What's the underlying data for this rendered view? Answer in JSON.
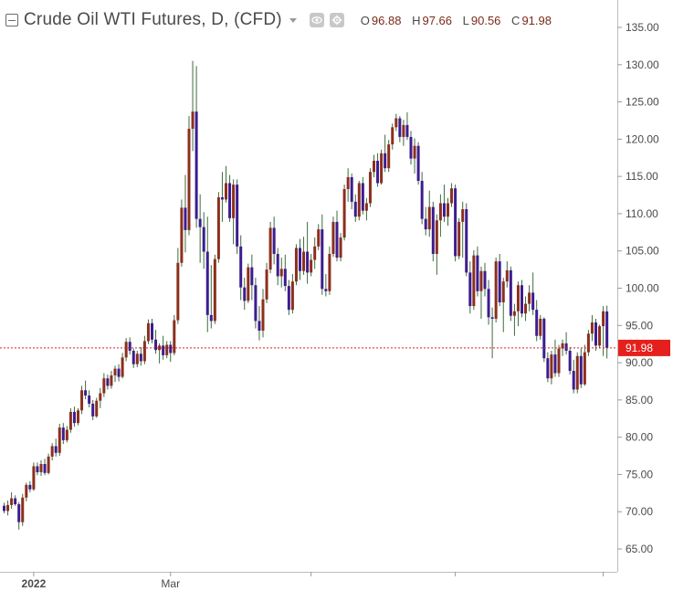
{
  "header": {
    "title": "Crude Oil WTI Futures, D, (CFD)",
    "ohlc": [
      {
        "label": "O",
        "value": "96.88"
      },
      {
        "label": "H",
        "value": "97.66"
      },
      {
        "label": "L",
        "value": "90.56"
      },
      {
        "label": "C",
        "value": "91.98"
      }
    ],
    "icons": [
      "collapse-icon",
      "chevron-down-icon",
      "eye-icon",
      "gear-icon"
    ]
  },
  "colors": {
    "up_body": "#8b2f1d",
    "down_body": "#3c1d8f",
    "wick": "#3e6b3e",
    "last_price_line": "#d9251c",
    "last_price_label_bg": "#e5201c",
    "axis_text": "#4a4a4a"
  },
  "chart_data": {
    "type": "candlestick",
    "title": "Crude Oil WTI Futures, D, (CFD)",
    "y_ticks": [
      65,
      70,
      75,
      80,
      85,
      90,
      95,
      100,
      105,
      110,
      115,
      120,
      125,
      130,
      135
    ],
    "y_tick_labels": [
      "65.00",
      "70.00",
      "75.00",
      "80.00",
      "85.00",
      "90.00",
      "95.00",
      "100.00",
      "105.00",
      "110.00",
      "115.00",
      "120.00",
      "125.00",
      "130.00",
      "135.00"
    ],
    "ylim": [
      62,
      137
    ],
    "x_labels": [
      {
        "text": "2022",
        "index": 8,
        "bold": true
      },
      {
        "text": "Mar",
        "index": 45,
        "bold": false
      }
    ],
    "x_extra_ticks": [
      83,
      122,
      162
    ],
    "last_price": 91.98,
    "last_price_label": "91.98",
    "candles": [
      [
        70.8,
        71.2,
        69.8,
        70.1
      ],
      [
        70.1,
        71.5,
        69.5,
        70.9
      ],
      [
        70.9,
        72.6,
        70.4,
        71.8
      ],
      [
        71.8,
        72.2,
        70.8,
        71.0
      ],
      [
        71.0,
        71.3,
        67.6,
        68.6
      ],
      [
        68.6,
        72.4,
        68.1,
        71.9
      ],
      [
        71.9,
        73.9,
        71.4,
        73.6
      ],
      [
        73.6,
        74.1,
        72.6,
        73.0
      ],
      [
        73.0,
        76.6,
        72.8,
        76.1
      ],
      [
        76.1,
        76.6,
        74.9,
        75.3
      ],
      [
        75.3,
        76.9,
        74.8,
        76.4
      ],
      [
        76.4,
        77.1,
        74.9,
        75.2
      ],
      [
        75.2,
        77.8,
        75.0,
        77.4
      ],
      [
        77.4,
        79.2,
        76.9,
        78.8
      ],
      [
        78.8,
        79.8,
        77.4,
        77.9
      ],
      [
        77.9,
        81.8,
        77.5,
        81.3
      ],
      [
        81.3,
        81.9,
        79.1,
        79.6
      ],
      [
        79.6,
        81.5,
        79.3,
        81.0
      ],
      [
        81.0,
        83.9,
        80.6,
        83.4
      ],
      [
        83.4,
        84.1,
        81.4,
        81.9
      ],
      [
        81.9,
        83.9,
        81.6,
        83.6
      ],
      [
        83.6,
        86.9,
        83.1,
        86.3
      ],
      [
        86.3,
        87.6,
        85.1,
        85.6
      ],
      [
        85.6,
        86.3,
        84.0,
        84.5
      ],
      [
        84.5,
        85.0,
        82.3,
        82.8
      ],
      [
        82.8,
        85.3,
        82.6,
        84.9
      ],
      [
        84.9,
        86.6,
        83.9,
        85.9
      ],
      [
        85.9,
        88.6,
        85.4,
        87.9
      ],
      [
        87.9,
        88.4,
        86.4,
        86.9
      ],
      [
        86.9,
        88.9,
        86.5,
        88.3
      ],
      [
        88.3,
        89.6,
        87.4,
        89.2
      ],
      [
        89.2,
        89.8,
        87.5,
        88.1
      ],
      [
        88.1,
        91.3,
        87.9,
        90.7
      ],
      [
        90.7,
        93.3,
        90.2,
        92.8
      ],
      [
        92.8,
        93.4,
        91.1,
        91.6
      ],
      [
        91.6,
        91.9,
        89.3,
        89.8
      ],
      [
        89.8,
        91.6,
        89.4,
        91.2
      ],
      [
        91.2,
        92.1,
        89.6,
        90.2
      ],
      [
        90.2,
        93.6,
        89.8,
        92.9
      ],
      [
        92.9,
        95.8,
        92.5,
        95.3
      ],
      [
        95.3,
        95.9,
        92.6,
        93.1
      ],
      [
        93.1,
        94.4,
        91.2,
        91.7
      ],
      [
        91.7,
        92.6,
        89.9,
        92.3
      ],
      [
        92.3,
        93.6,
        90.4,
        91.0
      ],
      [
        91.0,
        92.9,
        90.6,
        92.4
      ],
      [
        92.4,
        92.9,
        90.1,
        91.3
      ],
      [
        91.3,
        96.4,
        91.0,
        95.7
      ],
      [
        95.7,
        105.4,
        95.2,
        103.4
      ],
      [
        103.4,
        111.9,
        102.9,
        110.8
      ],
      [
        110.8,
        115.2,
        104.8,
        107.8
      ],
      [
        107.8,
        123.1,
        107.1,
        121.4
      ],
      [
        121.4,
        130.5,
        118.4,
        123.7
      ],
      [
        123.7,
        129.8,
        108.1,
        109.3
      ],
      [
        109.3,
        112.6,
        103.4,
        108.2
      ],
      [
        108.2,
        110.2,
        102.6,
        104.9
      ],
      [
        104.9,
        109.6,
        94.1,
        96.4
      ],
      [
        96.4,
        103.1,
        94.6,
        95.6
      ],
      [
        95.6,
        104.5,
        95.2,
        103.9
      ],
      [
        103.9,
        112.9,
        103.4,
        112.2
      ],
      [
        112.2,
        115.6,
        108.9,
        111.9
      ],
      [
        111.9,
        116.4,
        111.5,
        114.1
      ],
      [
        114.1,
        115.2,
        108.9,
        109.4
      ],
      [
        109.4,
        114.6,
        105.9,
        113.9
      ],
      [
        113.9,
        114.6,
        104.6,
        105.6
      ],
      [
        105.6,
        107.1,
        98.4,
        100.1
      ],
      [
        100.1,
        101.4,
        97.1,
        98.3
      ],
      [
        98.3,
        103.3,
        98.0,
        102.8
      ],
      [
        102.8,
        104.5,
        98.4,
        100.4
      ],
      [
        100.4,
        101.4,
        94.6,
        95.6
      ],
      [
        95.6,
        97.6,
        93.0,
        94.3
      ],
      [
        94.3,
        99.9,
        93.4,
        98.5
      ],
      [
        98.5,
        103.4,
        98.0,
        102.5
      ],
      [
        102.5,
        108.9,
        102.0,
        108.1
      ],
      [
        108.1,
        109.6,
        103.2,
        104.6
      ],
      [
        104.6,
        105.4,
        100.4,
        101.6
      ],
      [
        101.6,
        104.1,
        100.1,
        102.6
      ],
      [
        102.6,
        104.5,
        99.6,
        100.3
      ],
      [
        100.3,
        101.1,
        96.4,
        97.1
      ],
      [
        97.1,
        101.9,
        96.6,
        100.9
      ],
      [
        100.9,
        105.9,
        100.4,
        105.4
      ],
      [
        105.4,
        106.6,
        101.1,
        102.3
      ],
      [
        102.3,
        106.9,
        101.8,
        104.9
      ],
      [
        104.9,
        108.9,
        100.6,
        102.1
      ],
      [
        102.1,
        104.6,
        101.6,
        103.8
      ],
      [
        103.8,
        106.8,
        102.6,
        105.6
      ],
      [
        105.6,
        108.6,
        105.1,
        107.9
      ],
      [
        107.9,
        109.9,
        99.1,
        99.9
      ],
      [
        99.9,
        101.9,
        98.9,
        99.6
      ],
      [
        99.6,
        105.6,
        99.1,
        104.6
      ],
      [
        104.6,
        109.6,
        104.2,
        108.9
      ],
      [
        108.9,
        110.4,
        103.6,
        104.1
      ],
      [
        104.1,
        107.4,
        103.6,
        106.8
      ],
      [
        106.8,
        113.9,
        106.4,
        113.3
      ],
      [
        113.3,
        116.1,
        111.6,
        114.9
      ],
      [
        114.9,
        115.4,
        110.6,
        111.6
      ],
      [
        111.6,
        112.6,
        108.9,
        109.6
      ],
      [
        109.6,
        114.4,
        109.1,
        114.1
      ],
      [
        114.1,
        114.9,
        109.9,
        110.4
      ],
      [
        110.4,
        112.1,
        109.1,
        111.4
      ],
      [
        111.4,
        116.1,
        110.9,
        115.6
      ],
      [
        115.6,
        117.9,
        114.9,
        117.1
      ],
      [
        117.1,
        118.1,
        113.6,
        114.1
      ],
      [
        114.1,
        118.6,
        113.9,
        118.1
      ],
      [
        118.1,
        120.6,
        115.6,
        116.1
      ],
      [
        116.1,
        119.9,
        115.6,
        119.3
      ],
      [
        119.3,
        122.1,
        118.6,
        121.6
      ],
      [
        121.6,
        123.4,
        121.1,
        122.8
      ],
      [
        122.8,
        123.1,
        119.6,
        120.3
      ],
      [
        120.3,
        122.6,
        119.1,
        121.9
      ],
      [
        121.9,
        123.6,
        119.9,
        120.3
      ],
      [
        120.3,
        121.1,
        116.6,
        117.4
      ],
      [
        117.4,
        120.1,
        115.4,
        119.1
      ],
      [
        119.1,
        119.6,
        113.9,
        114.4
      ],
      [
        114.4,
        115.6,
        108.6,
        109.3
      ],
      [
        109.3,
        110.9,
        107.1,
        107.9
      ],
      [
        107.9,
        113.1,
        106.9,
        110.9
      ],
      [
        110.9,
        111.6,
        103.6,
        104.6
      ],
      [
        104.6,
        109.9,
        101.8,
        109.1
      ],
      [
        109.1,
        112.6,
        106.9,
        111.4
      ],
      [
        111.4,
        113.9,
        108.9,
        109.6
      ],
      [
        109.6,
        112.1,
        108.4,
        111.4
      ],
      [
        111.4,
        114.1,
        110.9,
        113.4
      ],
      [
        113.4,
        113.9,
        103.6,
        104.3
      ],
      [
        104.3,
        109.4,
        103.9,
        108.9
      ],
      [
        108.9,
        111.6,
        104.1,
        110.6
      ],
      [
        110.6,
        111.4,
        101.6,
        102.1
      ],
      [
        102.1,
        103.6,
        96.6,
        97.6
      ],
      [
        97.6,
        105.1,
        97.1,
        104.4
      ],
      [
        104.4,
        105.6,
        98.9,
        99.6
      ],
      [
        99.6,
        102.9,
        95.9,
        102.3
      ],
      [
        102.3,
        103.4,
        98.9,
        99.9
      ],
      [
        99.9,
        101.1,
        95.1,
        96.1
      ],
      [
        96.1,
        97.4,
        90.6,
        95.9
      ],
      [
        95.9,
        104.1,
        95.4,
        103.6
      ],
      [
        103.6,
        104.6,
        97.6,
        98.1
      ],
      [
        98.1,
        101.4,
        94.1,
        100.9
      ],
      [
        100.9,
        103.6,
        100.1,
        102.4
      ],
      [
        102.4,
        102.9,
        95.6,
        96.3
      ],
      [
        96.3,
        97.9,
        93.6,
        96.9
      ],
      [
        96.9,
        100.9,
        94.9,
        100.4
      ],
      [
        100.4,
        101.1,
        96.1,
        96.6
      ],
      [
        96.6,
        98.9,
        95.6,
        97.9
      ],
      [
        97.9,
        100.4,
        96.9,
        99.4
      ],
      [
        99.4,
        102.1,
        96.4,
        97.1
      ],
      [
        97.1,
        98.4,
        92.9,
        93.6
      ],
      [
        93.6,
        96.4,
        93.1,
        95.9
      ],
      [
        95.9,
        96.1,
        90.1,
        90.6
      ],
      [
        90.6,
        91.4,
        87.4,
        87.9
      ],
      [
        87.9,
        91.6,
        87.1,
        91.1
      ],
      [
        91.1,
        93.1,
        88.1,
        88.6
      ],
      [
        88.6,
        92.4,
        88.1,
        91.9
      ],
      [
        91.9,
        93.1,
        90.9,
        92.6
      ],
      [
        92.6,
        94.1,
        91.1,
        91.6
      ],
      [
        91.6,
        92.1,
        88.4,
        88.9
      ],
      [
        88.9,
        90.4,
        85.9,
        86.4
      ],
      [
        86.4,
        91.4,
        85.9,
        90.9
      ],
      [
        90.9,
        91.9,
        86.6,
        87.1
      ],
      [
        87.1,
        92.4,
        86.9,
        91.4
      ],
      [
        91.4,
        94.4,
        90.9,
        93.9
      ],
      [
        93.9,
        96.4,
        92.9,
        95.4
      ],
      [
        95.4,
        95.9,
        91.6,
        92.3
      ],
      [
        92.3,
        95.1,
        91.9,
        94.9
      ],
      [
        94.9,
        97.6,
        90.9,
        96.9
      ],
      [
        96.88,
        97.66,
        90.56,
        91.98
      ]
    ]
  }
}
